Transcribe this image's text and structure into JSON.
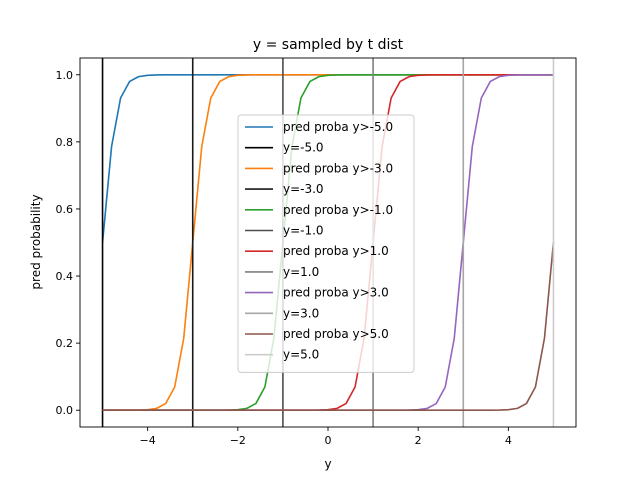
{
  "chart_data": {
    "type": "line",
    "title": "y = sampled by t dist",
    "xlabel": "y",
    "ylabel": "pred probability",
    "xlim": [
      -5.5,
      5.5
    ],
    "ylim": [
      -0.05,
      1.05
    ],
    "xticks": [
      -4,
      -2,
      0,
      2,
      4
    ],
    "yticks": [
      0.0,
      0.2,
      0.4,
      0.6,
      0.8,
      1.0
    ],
    "xtick_labels": [
      "−4",
      "−2",
      "0",
      "2",
      "4"
    ],
    "ytick_labels": [
      "0.0",
      "0.2",
      "0.4",
      "0.6",
      "0.8",
      "1.0"
    ],
    "grid": false,
    "legend_position": "center",
    "x": [
      -5.0,
      -4.8,
      -4.6,
      -4.4,
      -4.2,
      -4.0,
      -3.8,
      -3.6,
      -3.4,
      -3.2,
      -3.0,
      -2.8,
      -2.6,
      -2.4,
      -2.2,
      -2.0,
      -1.8,
      -1.6,
      -1.4,
      -1.2,
      -1.0,
      -0.8,
      -0.6,
      -0.4,
      -0.2,
      0.0,
      0.2,
      0.4,
      0.6,
      0.8,
      1.0,
      1.2,
      1.4,
      1.6,
      1.8,
      2.0,
      2.2,
      2.4,
      2.6,
      2.8,
      3.0,
      3.2,
      3.4,
      3.6,
      3.8,
      4.0,
      4.2,
      4.4,
      4.6,
      4.8,
      5.0
    ],
    "series": [
      {
        "name": "pred proba y>-5.0",
        "color": "#1f77b4",
        "threshold": -5.0
      },
      {
        "name": "pred proba y>-3.0",
        "color": "#ff7f0e",
        "threshold": -3.0
      },
      {
        "name": "pred proba y>-1.0",
        "color": "#2ca02c",
        "threshold": -1.0
      },
      {
        "name": "pred proba y>1.0",
        "color": "#d62728",
        "threshold": 1.0
      },
      {
        "name": "pred proba y>3.0",
        "color": "#9467bd",
        "threshold": 3.0
      },
      {
        "name": "pred proba y>5.0",
        "color": "#8c564b",
        "threshold": 5.0
      }
    ],
    "vlines": [
      {
        "name": "y=-5.0",
        "x": -5.0,
        "color": "#000000"
      },
      {
        "name": "y=-3.0",
        "x": -3.0,
        "color": "#1a1a1a"
      },
      {
        "name": "y=-1.0",
        "x": -1.0,
        "color": "#4d4d4d"
      },
      {
        "name": "y=1.0",
        "x": 1.0,
        "color": "#808080"
      },
      {
        "name": "y=3.0",
        "x": 3.0,
        "color": "#a6a6a6"
      },
      {
        "name": "y=5.0",
        "x": 5.0,
        "color": "#cccccc"
      }
    ],
    "legend_order": [
      "pred proba y>-5.0",
      "y=-5.0",
      "pred proba y>-3.0",
      "y=-3.0",
      "pred proba y>-1.0",
      "y=-1.0",
      "pred proba y>1.0",
      "y=1.0",
      "pred proba y>3.0",
      "y=3.0",
      "pred proba y>5.0",
      "y=5.0"
    ]
  }
}
